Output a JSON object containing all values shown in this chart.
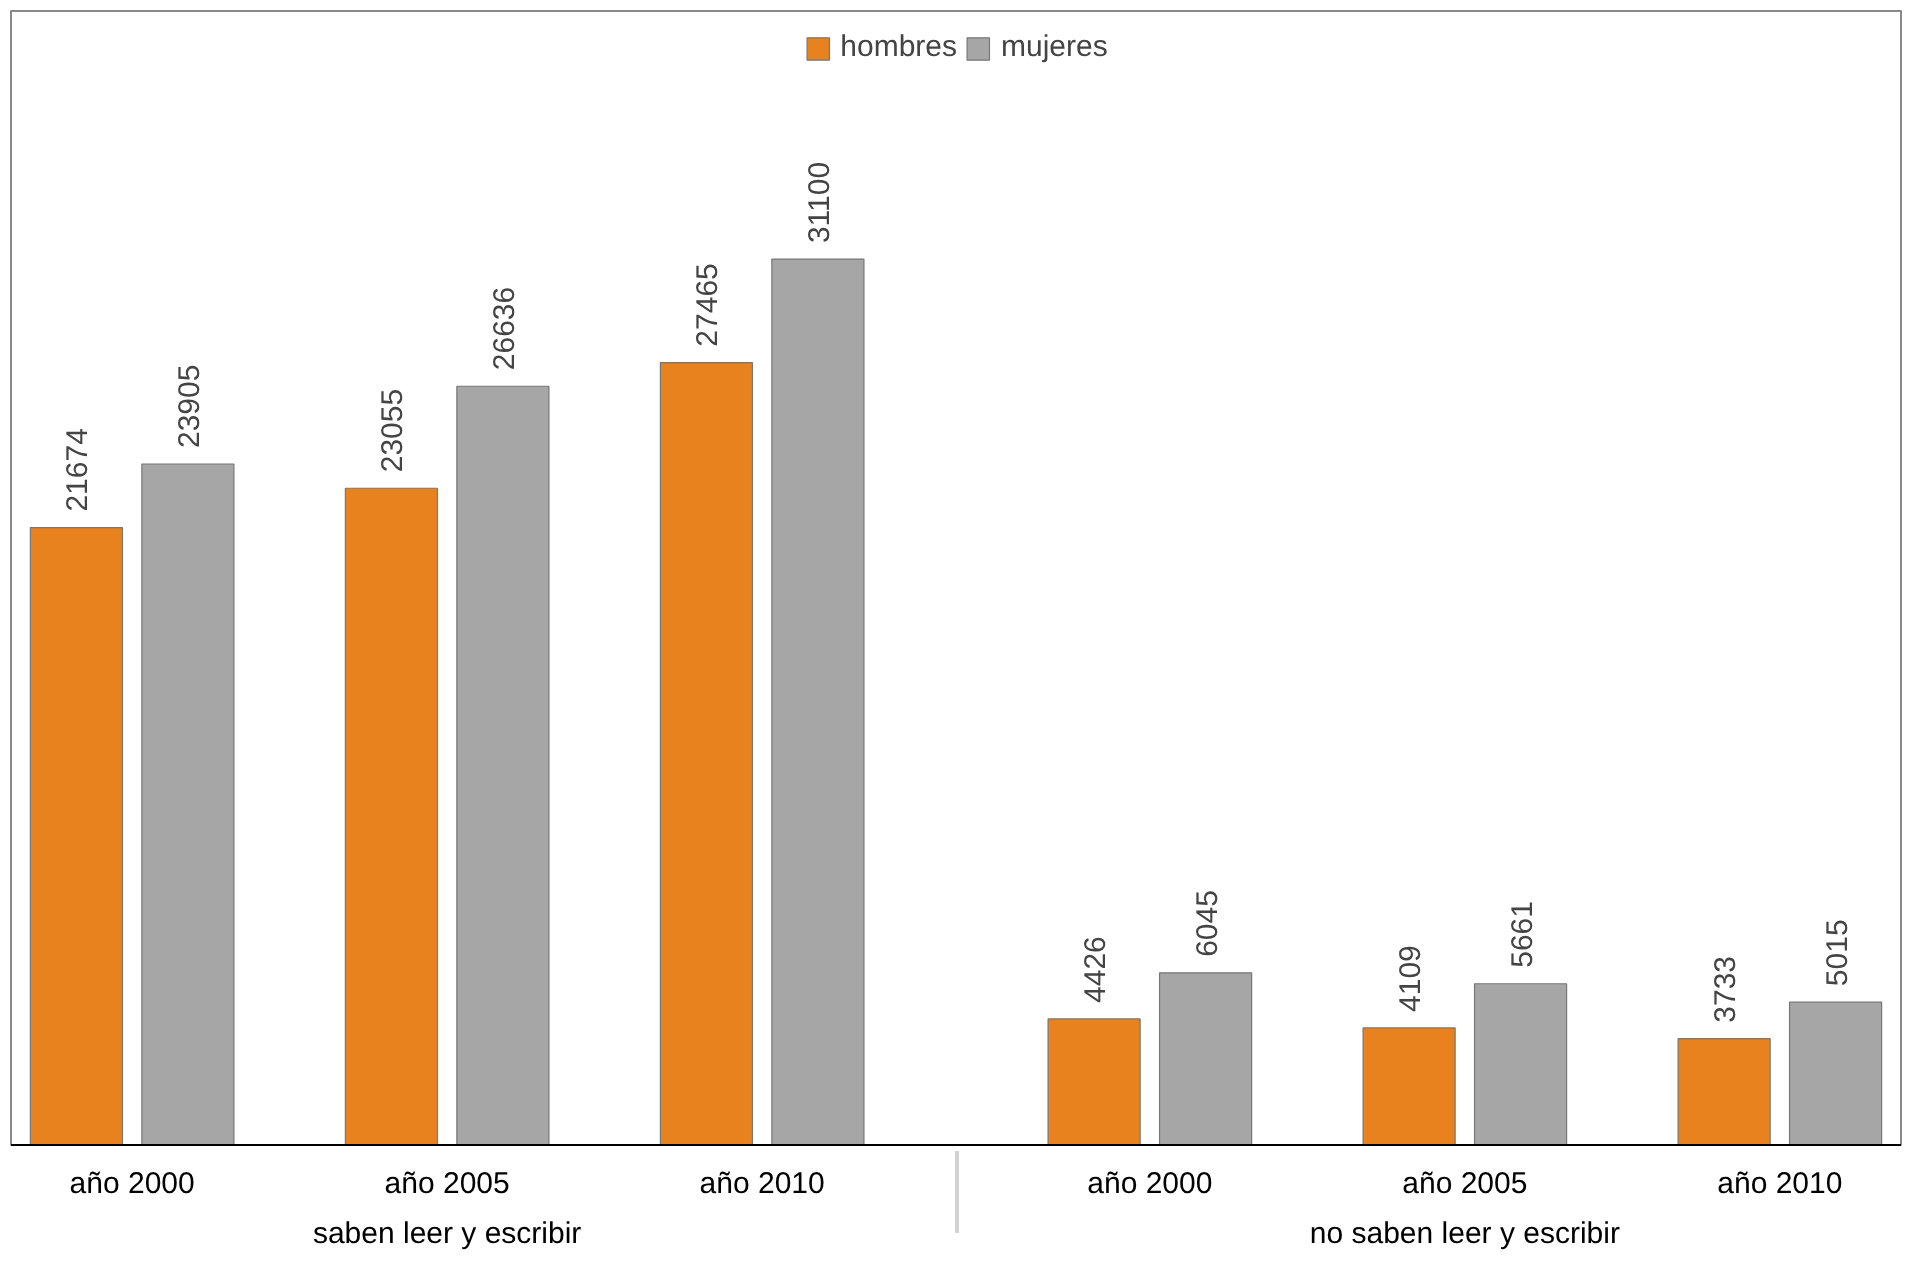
{
  "chart_data": {
    "type": "bar",
    "categories": [
      "año 2000",
      "año 2005",
      "año 2010",
      "año 2000",
      "año 2005",
      "año 2010"
    ],
    "series": [
      {
        "name": "hombres",
        "color": "#e8821e",
        "values": [
          21674,
          23055,
          27465,
          4426,
          4109,
          3733
        ]
      },
      {
        "name": "mujeres",
        "color": "#a6a6a6",
        "values": [
          23905,
          26636,
          31100,
          6045,
          5661,
          5015
        ]
      }
    ],
    "annotations": [
      "saben leer y escribir",
      "no saben leer y escribir"
    ],
    "data_labels": true,
    "legend": "top",
    "grid": false
  }
}
